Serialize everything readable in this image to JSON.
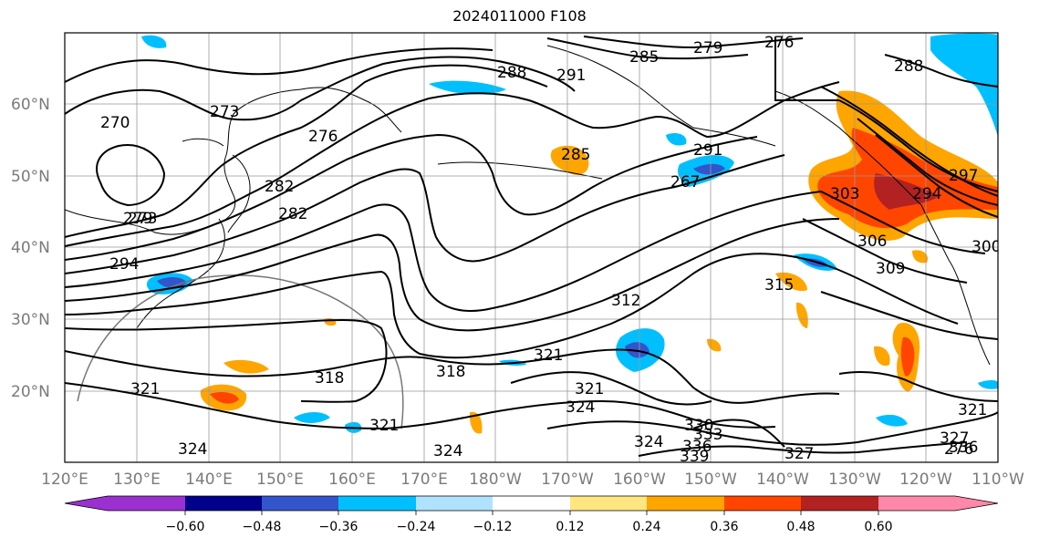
{
  "title": "2024011000 F108",
  "lat_labels": [
    "20°N",
    "30°N",
    "40°N",
    "50°N",
    "60°N"
  ],
  "lon_labels": [
    "120°E",
    "130°E",
    "140°E",
    "150°E",
    "160°E",
    "170°E",
    "180°W",
    "170°W",
    "160°W",
    "150°W",
    "140°W",
    "130°W",
    "120°W",
    "110°W"
  ],
  "colorbar": {
    "ticks": [
      "−0.60",
      "−0.48",
      "−0.36",
      "−0.24",
      "−0.12",
      "0.12",
      "0.24",
      "0.36",
      "0.48",
      "0.60"
    ],
    "colors": [
      "#9b30d0",
      "#00008b",
      "#3355cc",
      "#00bfff",
      "#b0e2ff",
      "#ffffff",
      "#ffe680",
      "#ffa500",
      "#ff4500",
      "#b22222",
      "#ff88aa"
    ]
  },
  "contour_labels": [
    "270",
    "273",
    "276",
    "279",
    "282",
    "285",
    "288",
    "291",
    "294",
    "276",
    "279",
    "282",
    "285",
    "288",
    "291",
    "294",
    "297",
    "300",
    "303",
    "306",
    "309",
    "312",
    "315",
    "318",
    "321",
    "324",
    "327",
    "330",
    "333",
    "336",
    "339",
    "267",
    "273",
    "276"
  ]
}
